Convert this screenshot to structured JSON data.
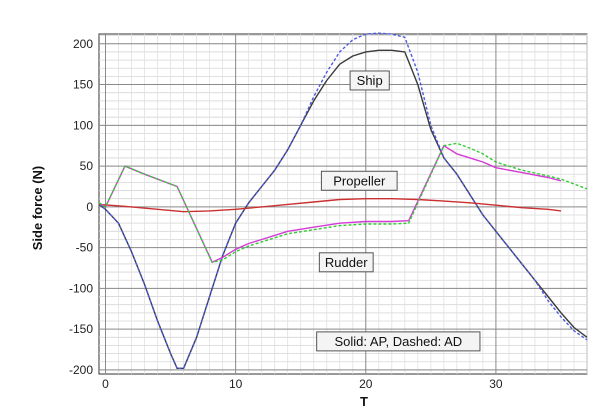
{
  "chart_data": {
    "type": "line",
    "title": "",
    "xlabel": "T",
    "ylabel": "Side force (N)",
    "xlim": [
      -0.5,
      37
    ],
    "ylim": [
      -205,
      212
    ],
    "xticks": [
      0,
      10,
      20,
      30
    ],
    "yticks": [
      -200,
      -150,
      -100,
      -50,
      0,
      50,
      100,
      150,
      200
    ],
    "grid": true,
    "legend": "none",
    "annotations": [
      {
        "text": "Ship",
        "x": 20.3,
        "y": 155
      },
      {
        "text": "Propeller",
        "x": 19.5,
        "y": 32
      },
      {
        "text": "Rudder",
        "x": 18.5,
        "y": -68
      },
      {
        "text": "Solid: AP, Dashed: AD",
        "x": 22.5,
        "y": -165
      }
    ],
    "series": [
      {
        "color": "#3a3a3a",
        "dash": false,
        "x": [
          -0.5,
          0,
          1,
          2,
          3,
          4,
          5,
          5.5,
          6,
          7,
          8,
          9,
          10,
          11,
          12,
          13,
          14,
          15,
          16,
          17,
          18,
          19,
          20,
          21,
          22,
          23,
          24,
          25,
          26,
          27,
          28,
          29,
          30,
          31,
          32,
          33,
          34,
          35,
          36,
          37
        ],
        "y": [
          3,
          -3,
          -20,
          -55,
          -95,
          -140,
          -180,
          -198,
          -198,
          -160,
          -110,
          -60,
          -20,
          5,
          25,
          45,
          70,
          100,
          130,
          155,
          175,
          185,
          190,
          192,
          192,
          190,
          150,
          95,
          60,
          40,
          15,
          -10,
          -30,
          -50,
          -70,
          -90,
          -110,
          -130,
          -148,
          -160
        ]
      },
      {
        "color": "#4b5be0",
        "dash": true,
        "x": [
          -0.5,
          0,
          1,
          2,
          3,
          4,
          5,
          5.5,
          6,
          7,
          8,
          9,
          10,
          11,
          12,
          13,
          14,
          15,
          16,
          17,
          18,
          19,
          20,
          21,
          22,
          23,
          24,
          25,
          26,
          27,
          28,
          29,
          30,
          31,
          32,
          33,
          34,
          35,
          36,
          37
        ],
        "y": [
          3,
          -3,
          -20,
          -55,
          -95,
          -140,
          -180,
          -198,
          -198,
          -160,
          -110,
          -60,
          -20,
          5,
          25,
          45,
          70,
          100,
          135,
          165,
          190,
          205,
          212,
          213,
          212,
          208,
          165,
          100,
          60,
          40,
          15,
          -10,
          -30,
          -50,
          -70,
          -90,
          -115,
          -135,
          -152,
          -163
        ]
      },
      {
        "color": "#cc2f2f",
        "dash": false,
        "x": [
          -0.5,
          2,
          4,
          6,
          8,
          10,
          12,
          14,
          16,
          18,
          20,
          22,
          24,
          26,
          28,
          30,
          32,
          34,
          35
        ],
        "y": [
          3,
          0,
          -3,
          -6,
          -5,
          -3,
          0,
          3,
          6,
          9,
          10,
          10,
          9,
          7,
          5,
          2,
          -1,
          -3,
          -5
        ]
      },
      {
        "color": "#d63ad6",
        "dash": false,
        "x": [
          -0.5,
          0,
          1.5,
          3,
          5.5,
          8.2,
          9,
          10,
          11,
          12,
          13,
          14,
          16,
          18,
          20,
          22,
          23.3,
          26,
          27,
          28,
          29,
          30,
          32,
          34,
          35
        ],
        "y": [
          5,
          0,
          50,
          40,
          25,
          -68,
          -62,
          -52,
          -45,
          -40,
          -35,
          -30,
          -25,
          -20,
          -18,
          -18,
          -17,
          75,
          65,
          60,
          55,
          48,
          42,
          36,
          32
        ]
      },
      {
        "color": "#33cc33",
        "dash": true,
        "x": [
          -0.5,
          0,
          1.5,
          3,
          5.5,
          8.2,
          9,
          10,
          11,
          12,
          13,
          14,
          16,
          18,
          20,
          22,
          23.3,
          26,
          27,
          28,
          29,
          30,
          32,
          34,
          35,
          36,
          37
        ],
        "y": [
          5,
          0,
          50,
          40,
          25,
          -68,
          -65,
          -55,
          -48,
          -43,
          -38,
          -33,
          -28,
          -23,
          -21,
          -21,
          -20,
          75,
          78,
          72,
          65,
          55,
          45,
          38,
          34,
          28,
          22
        ]
      }
    ]
  }
}
